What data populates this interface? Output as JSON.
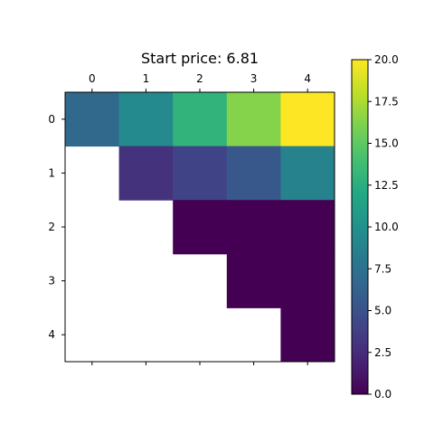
{
  "chart_data": {
    "type": "heatmap",
    "title": "Start price: 6.81",
    "x_ticks": [
      "0",
      "1",
      "2",
      "3",
      "4"
    ],
    "y_ticks": [
      "0",
      "1",
      "2",
      "3",
      "4"
    ],
    "x_tick_position": "top",
    "colormap": "viridis",
    "color_range": [
      0,
      20
    ],
    "colorbar_ticks": [
      "0.0",
      "2.5",
      "5.0",
      "7.5",
      "10.0",
      "12.5",
      "15.0",
      "17.5",
      "20.0"
    ],
    "grid": false,
    "matrix": [
      [
        6.81,
        9.4,
        12.95,
        16.3,
        20.0
      ],
      [
        null,
        2.9,
        3.95,
        5.5,
        8.9
      ],
      [
        null,
        null,
        0.0,
        0.0,
        0.0
      ],
      [
        null,
        null,
        null,
        0.0,
        0.0
      ],
      [
        null,
        null,
        null,
        null,
        0.0
      ]
    ]
  }
}
